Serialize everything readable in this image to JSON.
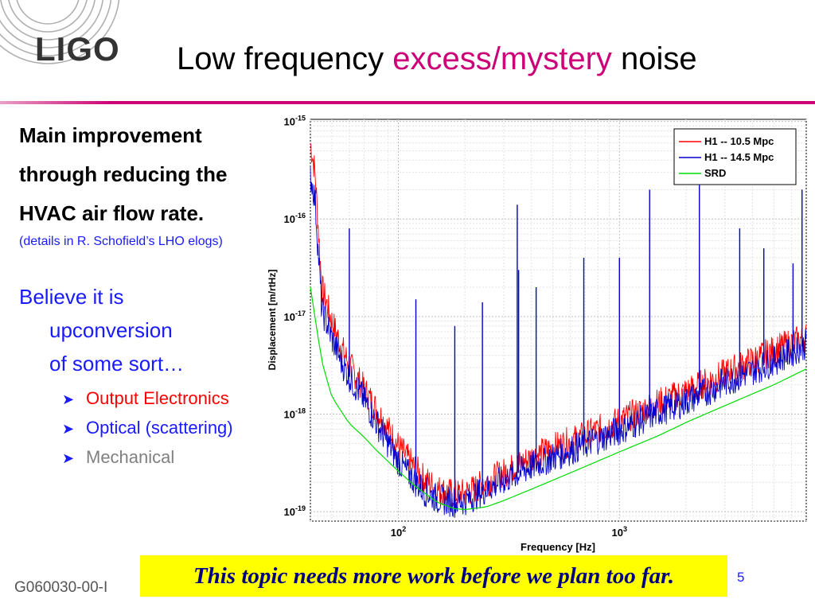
{
  "logo": {
    "text": "LIGO"
  },
  "slide": {
    "title_part1": "Low frequency ",
    "title_accent": "excess/mystery",
    "title_part2": " noise",
    "accent_color": "#cc0077"
  },
  "left": {
    "main_lines": [
      "Main improvement",
      "through reducing the",
      "HVAC air flow rate."
    ],
    "details": "(details in R. Schofield’s LHO elogs)",
    "belief_lines": [
      "Believe it is",
      "upconversion",
      "of some sort…"
    ],
    "bullets": [
      {
        "label": "Output Electronics",
        "color": "#ff0000"
      },
      {
        "label": "Optical (scattering)",
        "color": "#1a1aff"
      },
      {
        "label": "Mechanical",
        "color": "#808080"
      }
    ]
  },
  "chart_data": {
    "type": "line",
    "xlabel": "Frequency [Hz]",
    "ylabel": "Displacement [m/rtHz]",
    "xscale": "log",
    "yscale": "log",
    "xlim": [
      40,
      7000
    ],
    "ylim": [
      8e-20,
      1.05e-15
    ],
    "x_ticks": [
      "10^2",
      "10^3"
    ],
    "y_ticks": [
      "10^-15",
      "10^-16",
      "10^-17",
      "10^-18",
      "10^-19"
    ],
    "grid": true,
    "legend_position": "top-right",
    "series": [
      {
        "name": "H1 -- 10.5 Mpc",
        "color": "#ff0000",
        "x": [
          40,
          42,
          45,
          50,
          55,
          60,
          70,
          80,
          90,
          100,
          110,
          120,
          130,
          150,
          180,
          200,
          220,
          250,
          300,
          350,
          400,
          500,
          700,
          1000,
          1500,
          2000,
          3000,
          5000,
          7000
        ],
        "y": [
          6e-16,
          3e-16,
          2e-17,
          9e-18,
          5e-18,
          3.2e-18,
          1.8e-18,
          1.1e-18,
          7e-19,
          4.7e-19,
          3.5e-19,
          2.7e-19,
          2.2e-19,
          1.7e-19,
          1.5e-19,
          1.55e-19,
          1.7e-19,
          2e-19,
          2.5e-19,
          3e-19,
          3.6e-19,
          4.5e-19,
          6e-19,
          8.5e-19,
          1.3e-18,
          1.7e-18,
          2.6e-18,
          4.5e-18,
          6.2e-18
        ]
      },
      {
        "name": "H1 -- 14.5 Mpc",
        "color": "#0000cc",
        "x": [
          40,
          42,
          45,
          50,
          55,
          60,
          70,
          80,
          90,
          100,
          110,
          120,
          130,
          150,
          180,
          200,
          220,
          250,
          300,
          350,
          400,
          500,
          700,
          1000,
          1500,
          2000,
          3000,
          5000,
          7000
        ],
        "y": [
          2.8e-16,
          1.6e-16,
          1.2e-17,
          6e-18,
          3.5e-18,
          2.4e-18,
          1.4e-18,
          8e-19,
          5e-19,
          3.3e-19,
          2.5e-19,
          2e-19,
          1.65e-19,
          1.35e-19,
          1.25e-19,
          1.3e-19,
          1.45e-19,
          1.7e-19,
          2.1e-19,
          2.5e-19,
          2.9e-19,
          3.6e-19,
          4.9e-19,
          6.8e-19,
          1.05e-18,
          1.35e-18,
          2.1e-18,
          3.5e-18,
          5.2e-18
        ]
      },
      {
        "name": "SRD",
        "color": "#00dd00",
        "x": [
          40,
          45,
          50,
          60,
          70,
          80,
          100,
          120,
          150,
          180,
          200,
          250,
          300,
          400,
          500,
          700,
          1000,
          1500,
          2000,
          3000,
          5000,
          7000
        ],
        "y": [
          2e-17,
          3.5e-18,
          1.5e-18,
          8e-19,
          5.8e-19,
          4.2e-19,
          2.6e-19,
          1.8e-19,
          1.25e-19,
          1.07e-19,
          1.05e-19,
          1.12e-19,
          1.3e-19,
          1.7e-19,
          2.1e-19,
          2.9e-19,
          4.1e-19,
          6e-19,
          8.2e-19,
          1.22e-18,
          2e-18,
          2.9e-18
        ]
      }
    ],
    "peaks": [
      {
        "x": 60,
        "y": 8e-17
      },
      {
        "x": 120,
        "y": 1.5e-17
      },
      {
        "x": 180,
        "y": 8e-18
      },
      {
        "x": 240,
        "y": 1.4e-17
      },
      {
        "x": 345,
        "y": 1.4e-16
      },
      {
        "x": 350,
        "y": 3e-17
      },
      {
        "x": 420,
        "y": 2e-17
      },
      {
        "x": 690,
        "y": 4e-17
      },
      {
        "x": 1000,
        "y": 4e-17
      },
      {
        "x": 1370,
        "y": 2e-16
      },
      {
        "x": 2300,
        "y": 2.5e-16
      },
      {
        "x": 3500,
        "y": 8e-17
      },
      {
        "x": 4500,
        "y": 5e-17
      },
      {
        "x": 6100,
        "y": 3.5e-17
      },
      {
        "x": 6700,
        "y": 2e-16
      }
    ]
  },
  "banner": {
    "text": "This topic needs more work before we plan too far."
  },
  "footer": {
    "doc_id": "G060030-00-I",
    "page": "5"
  }
}
